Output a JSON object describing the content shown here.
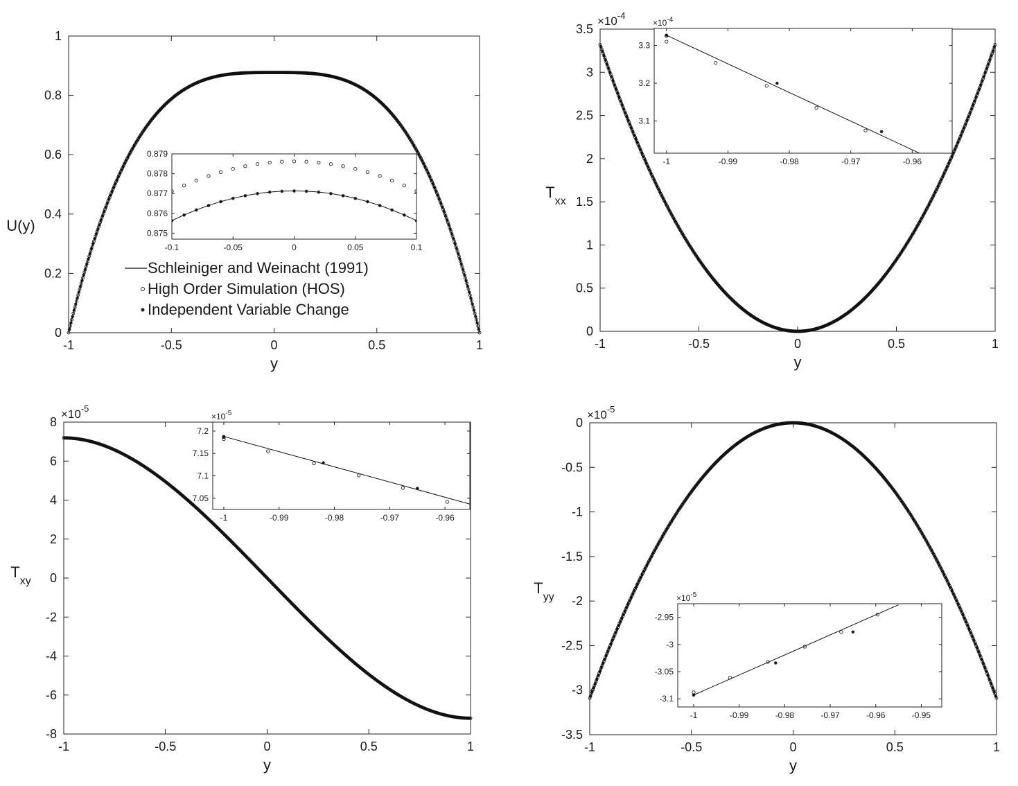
{
  "chart_data": [
    {
      "id": "u-profile",
      "type": "line",
      "xlabel": "y",
      "ylabel": "U(y)",
      "xlim": [
        -1,
        1
      ],
      "ylim": [
        0,
        1
      ],
      "xticks": [
        "-1",
        "-0.5",
        "0",
        "0.5",
        "1"
      ],
      "yticks": [
        "0",
        "0.2",
        "0.4",
        "0.6",
        "0.8",
        "1"
      ],
      "exponent": "",
      "curve": {
        "family": "quartic-profile",
        "peak": 0.87713
      },
      "legend": {
        "placement": "center-left",
        "entries": [
          {
            "label": "Schleiniger and Weinacht (1991)",
            "marker": "line"
          },
          {
            "label": "High Order Simulation (HOS)",
            "marker": "circle"
          },
          {
            "label": "Independent Variable Change",
            "marker": "asterisk"
          }
        ]
      },
      "inset": {
        "placement": "center",
        "xlim": [
          -0.1,
          0.1
        ],
        "ylim": [
          0.8747,
          0.879
        ],
        "xticks": [
          "-0.1",
          "-0.05",
          "0",
          "0.05",
          "0.1"
        ],
        "yticks": [
          "0.875",
          "0.876",
          "0.877",
          "0.878",
          "0.879"
        ],
        "exponent": "",
        "series": [
          {
            "name": "Schleiniger and Weinacht (1991)",
            "kind": "line",
            "x": [
              -0.1,
              0.1
            ],
            "vertex": 0.87713
          },
          {
            "name": "High Order Simulation (HOS)",
            "kind": "circle",
            "x_start": -0.1,
            "x_step": 0.01,
            "count": 21,
            "vertex": 0.87862
          },
          {
            "name": "Independent Variable Change",
            "kind": "asterisk",
            "x_start": -0.1,
            "x_step": 0.01,
            "count": 21,
            "vertex": 0.87713
          }
        ]
      }
    },
    {
      "id": "txx-profile",
      "type": "line",
      "xlabel": "y",
      "ylabel": "T",
      "ylabel_sub": "xx",
      "xlim": [
        -1,
        1
      ],
      "ylim": [
        0,
        3.5
      ],
      "xticks": [
        "-1",
        "-0.5",
        "0",
        "0.5",
        "1"
      ],
      "yticks": [
        "0",
        "0.5",
        "1",
        "1.5",
        "2",
        "2.5",
        "3",
        "3.5"
      ],
      "exponent": "×10",
      "exponent_power": "-4",
      "curve": {
        "family": "parabola",
        "peak": 3.32
      },
      "inset": {
        "placement": "top",
        "xlim": [
          -1.002,
          -0.9535
        ],
        "ylim": [
          3.015,
          3.345
        ],
        "xticks": [
          "-1",
          "-0.99",
          "-0.98",
          "-0.97",
          "-0.96"
        ],
        "yticks": [
          "3.1",
          "3.2",
          "3.3"
        ],
        "exponent": "×10",
        "exponent_power": "-4",
        "series": [
          {
            "name": "Schleiniger and Weinacht (1991)",
            "kind": "line",
            "x": [
              -1,
              -0.9575
            ],
            "y": [
              3.327,
              3.005
            ]
          },
          {
            "name": "High Order Simulation (HOS)",
            "kind": "circle",
            "x": [
              -1.0,
              -1.0,
              -0.992,
              -0.9837,
              -0.9756,
              -0.9676,
              -0.9596
            ],
            "y": [
              3.31,
              3.325,
              3.254,
              3.193,
              3.135,
              3.075,
              3.005
            ]
          },
          {
            "name": "Independent Variable Change",
            "kind": "asterisk",
            "x": [
              -1.0,
              -0.982,
              -0.965
            ],
            "y": [
              3.327,
              3.2,
              3.072
            ]
          }
        ]
      }
    },
    {
      "id": "txy-profile",
      "type": "line",
      "xlabel": "y",
      "ylabel": "T",
      "ylabel_sub": "xy",
      "xlim": [
        -1,
        1
      ],
      "ylim": [
        -8,
        8
      ],
      "xticks": [
        "-1",
        "-0.5",
        "0",
        "0.5",
        "1"
      ],
      "yticks": [
        "-8",
        "-6",
        "-4",
        "-2",
        "0",
        "2",
        "4",
        "6",
        "8"
      ],
      "exponent": "×10",
      "exponent_power": "-5",
      "curve": {
        "family": "quintic-antisymmetric",
        "endpoint": 7.19
      },
      "inset": {
        "placement": "top-right",
        "xlim": [
          -1.002,
          -0.9555
        ],
        "ylim": [
          7.025,
          7.22
        ],
        "xticks": [
          "-1",
          "-0.99",
          "-0.98",
          "-0.97",
          "-0.96"
        ],
        "yticks": [
          "7.05",
          "7.1",
          "7.15",
          "7.2"
        ],
        "exponent": "×10",
        "exponent_power": "-5",
        "series": [
          {
            "name": "Schleiniger and Weinacht (1991)",
            "kind": "line",
            "x": [
              -1,
              -0.9555
            ],
            "y": [
              7.188,
              7.037
            ]
          },
          {
            "name": "High Order Simulation (HOS)",
            "kind": "circle",
            "x": [
              -1.0,
              -1.0,
              -0.992,
              -0.9837,
              -0.9756,
              -0.9676,
              -0.9596
            ],
            "y": [
              7.182,
              7.187,
              7.155,
              7.128,
              7.101,
              7.073,
              7.042
            ]
          },
          {
            "name": "Independent Variable Change",
            "kind": "asterisk",
            "x": [
              -1.0,
              -0.982,
              -0.965
            ],
            "y": [
              7.187,
              7.129,
              7.072
            ]
          }
        ]
      }
    },
    {
      "id": "tyy-profile",
      "type": "line",
      "xlabel": "y",
      "ylabel": "T",
      "ylabel_sub": "yy",
      "xlim": [
        -1,
        1
      ],
      "ylim": [
        -3.5,
        0
      ],
      "xticks": [
        "-1",
        "-0.5",
        "0",
        "0.5",
        "1"
      ],
      "yticks": [
        "-3.5",
        "-3",
        "-2.5",
        "-2",
        "-1.5",
        "-1",
        "-0.5",
        "0"
      ],
      "exponent": "×10",
      "exponent_power": "-5",
      "curve": {
        "family": "negative-parabola",
        "endpoint": -3.09
      },
      "inset": {
        "placement": "bottom-center",
        "xlim": [
          -1.0035,
          -0.9455
        ],
        "ylim": [
          -3.115,
          -2.925
        ],
        "xticks": [
          "-1",
          "-0.99",
          "-0.98",
          "-0.97",
          "-0.96",
          "-0.95"
        ],
        "yticks": [
          "-3.1",
          "-3.05",
          "-3",
          "-2.95"
        ],
        "exponent": "×10",
        "exponent_power": "-5",
        "series": [
          {
            "name": "Schleiniger and Weinacht (1991)",
            "kind": "line",
            "x": [
              -1,
              -0.955
            ],
            "y": [
              -3.093,
              -2.927
            ]
          },
          {
            "name": "High Order Simulation (HOS)",
            "kind": "circle",
            "x": [
              -1.0,
              -0.992,
              -0.9837,
              -0.9756,
              -0.9676,
              -0.9596
            ],
            "y": [
              -3.088,
              -3.061,
              -3.032,
              -3.004,
              -2.977,
              -2.945
            ]
          },
          {
            "name": "Independent Variable Change",
            "kind": "asterisk",
            "x": [
              -1.0,
              -0.982,
              -0.965
            ],
            "y": [
              -3.093,
              -3.034,
              -2.977
            ]
          }
        ]
      }
    }
  ]
}
